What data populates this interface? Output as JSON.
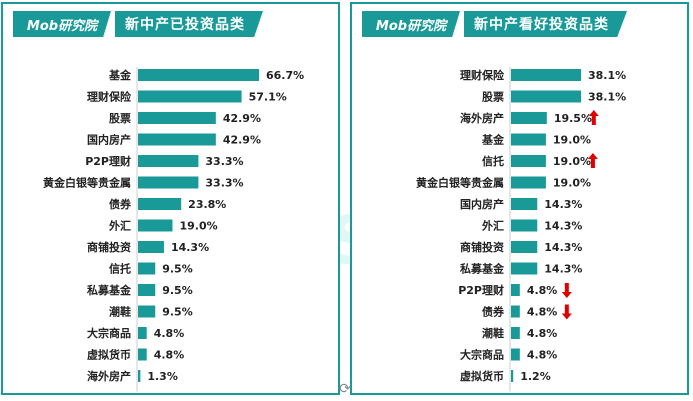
{
  "colors": {
    "accent": "#1a9999",
    "bar": "#1a9999",
    "arrow_up": "#e00000",
    "arrow_down": "#e00000"
  },
  "watermark": "Mobresearch",
  "left": {
    "logo": "Mob研究院",
    "title": "新中产已投资品类"
  },
  "right": {
    "logo": "Mob研究院",
    "title": "新中产看好投资品类"
  },
  "chart_data": [
    {
      "type": "bar",
      "orientation": "horizontal",
      "title": "新中产已投资品类",
      "xlim": [
        0,
        70
      ],
      "categories": [
        "基金",
        "理财保险",
        "股票",
        "国内房产",
        "P2P理财",
        "黄金白银等贵金属",
        "债券",
        "外汇",
        "商铺投资",
        "信托",
        "私募基金",
        "潮鞋",
        "大宗商品",
        "虚拟货币",
        "海外房产"
      ],
      "values": [
        66.7,
        57.1,
        42.9,
        42.9,
        33.3,
        33.3,
        23.8,
        19.0,
        14.3,
        9.5,
        9.5,
        9.5,
        4.8,
        4.8,
        1.3
      ],
      "value_labels": [
        "66.7%",
        "57.1%",
        "42.9%",
        "42.9%",
        "33.3%",
        "33.3%",
        "23.8%",
        "19.0%",
        "14.3%",
        "9.5%",
        "9.5%",
        "9.5%",
        "4.8%",
        "4.8%",
        "1.3%"
      ],
      "arrows": [
        "",
        "",
        "",
        "",
        "",
        "",
        "",
        "",
        "",
        "",
        "",
        "",
        "",
        "",
        ""
      ]
    },
    {
      "type": "bar",
      "orientation": "horizontal",
      "title": "新中产看好投资品类",
      "xlim": [
        0,
        70
      ],
      "categories": [
        "理财保险",
        "股票",
        "海外房产",
        "基金",
        "信托",
        "黄金白银等贵金属",
        "国内房产",
        "外汇",
        "商铺投资",
        "私募基金",
        "P2P理财",
        "债券",
        "潮鞋",
        "大宗商品",
        "虚拟货币"
      ],
      "values": [
        38.1,
        38.1,
        19.5,
        19.0,
        19.0,
        19.0,
        14.3,
        14.3,
        14.3,
        14.3,
        4.8,
        4.8,
        4.8,
        4.8,
        1.2
      ],
      "value_labels": [
        "38.1%",
        "38.1%",
        "19.5%",
        "19.0%",
        "19.0%",
        "19.0%",
        "14.3%",
        "14.3%",
        "14.3%",
        "14.3%",
        "4.8%",
        "4.8%",
        "4.8%",
        "4.8%",
        "1.2%"
      ],
      "arrows": [
        "",
        "",
        "up",
        "",
        "up",
        "",
        "",
        "",
        "",
        "",
        "down",
        "down",
        "",
        "",
        ""
      ]
    }
  ]
}
